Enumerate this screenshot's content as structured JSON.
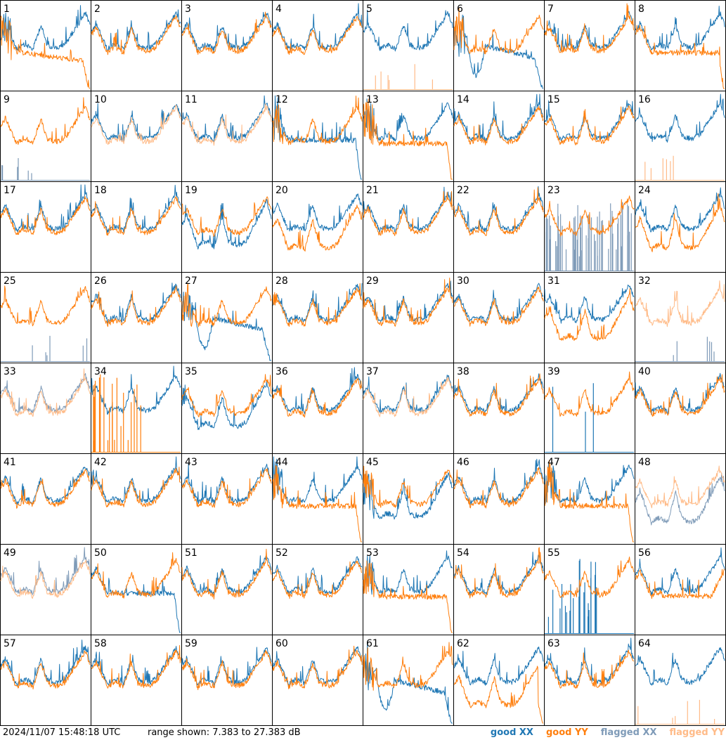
{
  "footer": {
    "timestamp": "2024/11/07 15:48:18 UTC",
    "range_text": "range shown: 7.383 to 27.383 dB"
  },
  "colors": {
    "good_xx": "#1f77b4",
    "good_yy": "#ff7f0e",
    "flagged_xx": "#7f9bb8",
    "flagged_yy": "#ffbb88"
  },
  "chart_data": {
    "type": "line",
    "grid": "8x8 small multiples",
    "xlabel": "",
    "ylabel": "",
    "ylim": [
      7.383,
      27.383
    ],
    "legend": [
      {
        "name": "good XX",
        "color": "#1f77b4"
      },
      {
        "name": "good YY",
        "color": "#ff7f0e"
      },
      {
        "name": "flagged XX",
        "color": "#7f9bb8"
      },
      {
        "name": "flagged YY",
        "color": "#ffbb88"
      }
    ],
    "panels": [
      {
        "label": "1",
        "xx": "good",
        "yy": "droop_end",
        "noisy": true
      },
      {
        "label": "2",
        "xx": "good",
        "yy": "good"
      },
      {
        "label": "3",
        "xx": "good",
        "yy": "good"
      },
      {
        "label": "4",
        "xx": "good",
        "yy": "good"
      },
      {
        "label": "5",
        "xx": "good",
        "yy": "spikes_flagged"
      },
      {
        "label": "6",
        "xx": "dip_drop",
        "yy": "good",
        "noisy": true
      },
      {
        "label": "7",
        "xx": "good",
        "yy": "good"
      },
      {
        "label": "8",
        "xx": "good",
        "yy": "flat_drop"
      },
      {
        "label": "9",
        "xx": "spikes_flagged",
        "yy": "good"
      },
      {
        "label": "10",
        "xx": "good",
        "yy": "flagged_normal"
      },
      {
        "label": "11",
        "xx": "good",
        "yy": "flagged_normal"
      },
      {
        "label": "12",
        "xx": "flat_drop",
        "yy": "good",
        "noisy": true
      },
      {
        "label": "13",
        "xx": "good",
        "yy": "flat_drop",
        "noisy": true
      },
      {
        "label": "14",
        "xx": "good",
        "yy": "good"
      },
      {
        "label": "15",
        "xx": "good",
        "yy": "good"
      },
      {
        "label": "16",
        "xx": "good",
        "yy": "spikes_flagged"
      },
      {
        "label": "17",
        "xx": "good",
        "yy": "good"
      },
      {
        "label": "18",
        "xx": "good",
        "yy": "good"
      },
      {
        "label": "19",
        "xx": "deep",
        "yy": "good"
      },
      {
        "label": "20",
        "xx": "good",
        "yy": "deep"
      },
      {
        "label": "21",
        "xx": "good",
        "yy": "good"
      },
      {
        "label": "22",
        "xx": "good",
        "yy": "good"
      },
      {
        "label": "23",
        "xx": "noise_flagged",
        "yy": "good"
      },
      {
        "label": "24",
        "xx": "good",
        "yy": "deep"
      },
      {
        "label": "25",
        "xx": "spikes_flagged",
        "yy": "good"
      },
      {
        "label": "26",
        "xx": "good",
        "yy": "good"
      },
      {
        "label": "27",
        "xx": "dip_drop",
        "yy": "good",
        "noisy": true
      },
      {
        "label": "28",
        "xx": "good",
        "yy": "good"
      },
      {
        "label": "29",
        "xx": "good",
        "yy": "good"
      },
      {
        "label": "30",
        "xx": "good",
        "yy": "good"
      },
      {
        "label": "31",
        "xx": "good",
        "yy": "deep"
      },
      {
        "label": "32",
        "xx": "spikes_flagged",
        "yy": "flagged_normal"
      },
      {
        "label": "33",
        "xx": "flagged_normal",
        "yy": "flagged_normal"
      },
      {
        "label": "34",
        "xx": "good",
        "yy": "spikes_good"
      },
      {
        "label": "35",
        "xx": "deep",
        "yy": "good"
      },
      {
        "label": "36",
        "xx": "good",
        "yy": "good"
      },
      {
        "label": "37",
        "xx": "good",
        "yy": "flagged_normal"
      },
      {
        "label": "38",
        "xx": "good",
        "yy": "good"
      },
      {
        "label": "39",
        "xx": "spike_one",
        "yy": "good"
      },
      {
        "label": "40",
        "xx": "good",
        "yy": "good"
      },
      {
        "label": "41",
        "xx": "good",
        "yy": "good"
      },
      {
        "label": "42",
        "xx": "good",
        "yy": "good"
      },
      {
        "label": "43",
        "xx": "good",
        "yy": "good"
      },
      {
        "label": "44",
        "xx": "good",
        "yy": "flat_drop",
        "noisy": true
      },
      {
        "label": "45",
        "xx": "deep",
        "yy": "good",
        "noisy": true
      },
      {
        "label": "46",
        "xx": "good",
        "yy": "good"
      },
      {
        "label": "47",
        "xx": "good",
        "yy": "flat_drop",
        "noisy": true
      },
      {
        "label": "48",
        "xx": "flagged_deep",
        "yy": "flagged_normal"
      },
      {
        "label": "49",
        "xx": "flagged_normal",
        "yy": "flagged_normal"
      },
      {
        "label": "50",
        "xx": "flat_drop",
        "yy": "good"
      },
      {
        "label": "51",
        "xx": "good",
        "yy": "good"
      },
      {
        "label": "52",
        "xx": "good",
        "yy": "good"
      },
      {
        "label": "53",
        "xx": "good",
        "yy": "flat_drop",
        "noisy": true
      },
      {
        "label": "54",
        "xx": "good",
        "yy": "good"
      },
      {
        "label": "55",
        "xx": "spikes_good",
        "yy": "good"
      },
      {
        "label": "56",
        "xx": "good",
        "yy": "flat_good"
      },
      {
        "label": "57",
        "xx": "good",
        "yy": "good"
      },
      {
        "label": "58",
        "xx": "good",
        "yy": "good"
      },
      {
        "label": "59",
        "xx": "good",
        "yy": "good"
      },
      {
        "label": "60",
        "xx": "good",
        "yy": "good"
      },
      {
        "label": "61",
        "xx": "dip_drop",
        "yy": "good",
        "noisy": true
      },
      {
        "label": "62",
        "xx": "good",
        "yy": "deep_drop"
      },
      {
        "label": "63",
        "xx": "good",
        "yy": "good"
      },
      {
        "label": "64",
        "xx": "good",
        "yy": "spikes_flagged"
      }
    ]
  }
}
